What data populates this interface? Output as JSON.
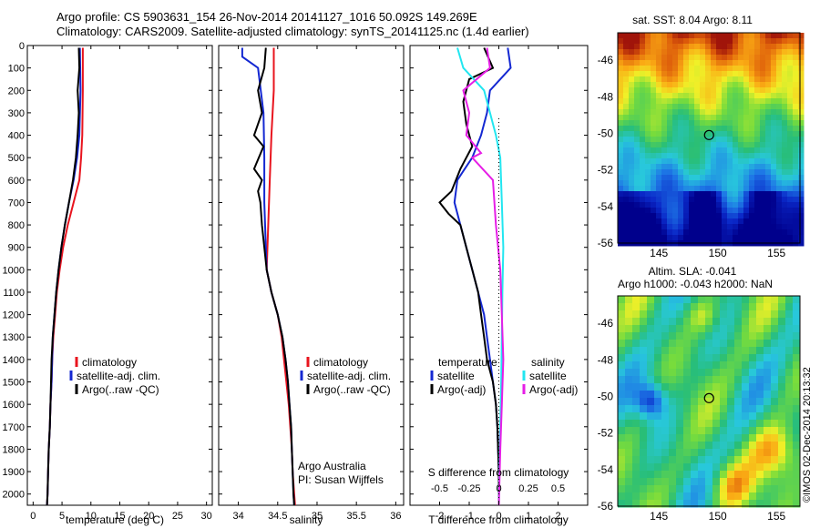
{
  "header": {
    "line1": "Argo profile: CS 5903631_154 26-Nov-2014 20141127_1016 50.092S 149.269E",
    "line2": "Climatology: CARS2009. Satellite-adjusted climatology: synTS_20141125.nc (1.4d earlier)"
  },
  "colors": {
    "climatology": "#e8141e",
    "satellite": "#1428d2",
    "argo": "#000000",
    "satellite_salinity": "#22e6f0",
    "argo_salinity": "#e61ee6"
  },
  "chart_data": [
    {
      "type": "line",
      "id": "temperature",
      "xlabel": "temperature (deg C)",
      "ylabel": "",
      "xlim": [
        -1,
        31
      ],
      "ylim": [
        2050,
        0
      ],
      "x_ticks": [
        0,
        5,
        10,
        15,
        20,
        25,
        30
      ],
      "y_ticks": [
        0,
        100,
        200,
        300,
        400,
        500,
        600,
        700,
        800,
        900,
        1000,
        1100,
        1200,
        1300,
        1400,
        1500,
        1600,
        1700,
        1800,
        1900,
        2000
      ],
      "legend": [
        "climatology",
        "satellite-adj. clim.",
        "Argo(..raw -QC)"
      ],
      "legend_position": "center",
      "series": [
        {
          "name": "climatology",
          "color": "red",
          "points": [
            [
              8.6,
              10
            ],
            [
              8.6,
              200
            ],
            [
              8.5,
              400
            ],
            [
              8.3,
              500
            ],
            [
              8.0,
              600
            ],
            [
              7.0,
              700
            ],
            [
              6.0,
              800
            ],
            [
              5.2,
              900
            ],
            [
              4.6,
              1000
            ],
            [
              4.1,
              1100
            ],
            [
              3.8,
              1200
            ],
            [
              3.5,
              1300
            ],
            [
              3.3,
              1400
            ],
            [
              3.2,
              1500
            ],
            [
              3.0,
              1600
            ],
            [
              2.9,
              1700
            ],
            [
              2.7,
              1800
            ],
            [
              2.6,
              1900
            ],
            [
              2.5,
              2000
            ],
            [
              2.4,
              2050
            ]
          ]
        },
        {
          "name": "satellite-adj. clim.",
          "color": "blue",
          "points": [
            [
              8.1,
              10
            ],
            [
              8.2,
              200
            ],
            [
              8.0,
              400
            ],
            [
              7.6,
              500
            ],
            [
              7.0,
              600
            ],
            [
              6.2,
              700
            ],
            [
              5.5,
              800
            ],
            [
              4.9,
              900
            ],
            [
              4.4,
              1000
            ],
            [
              4.0,
              1100
            ],
            [
              3.7,
              1200
            ],
            [
              3.4,
              1300
            ],
            [
              3.3,
              1400
            ],
            [
              3.2,
              1500
            ],
            [
              3.0,
              1600
            ],
            [
              2.9,
              1700
            ],
            [
              2.7,
              1800
            ],
            [
              2.6,
              1900
            ],
            [
              2.5,
              2000
            ],
            [
              2.4,
              2050
            ]
          ]
        },
        {
          "name": "Argo(..raw -QC)",
          "color": "black",
          "points": [
            [
              7.9,
              10
            ],
            [
              8.0,
              100
            ],
            [
              7.7,
              200
            ],
            [
              7.9,
              300
            ],
            [
              7.7,
              400
            ],
            [
              7.4,
              500
            ],
            [
              6.9,
              600
            ],
            [
              6.2,
              700
            ],
            [
              5.5,
              800
            ],
            [
              4.9,
              900
            ],
            [
              4.4,
              1000
            ],
            [
              4.0,
              1100
            ],
            [
              3.7,
              1200
            ],
            [
              3.4,
              1300
            ],
            [
              3.2,
              1400
            ],
            [
              3.1,
              1500
            ],
            [
              3.0,
              1600
            ],
            [
              2.9,
              1700
            ],
            [
              2.7,
              1800
            ],
            [
              2.6,
              1900
            ],
            [
              2.5,
              2000
            ],
            [
              2.4,
              2050
            ]
          ]
        }
      ]
    },
    {
      "type": "line",
      "id": "salinity",
      "xlabel": "salinity",
      "ylabel": "",
      "xlim": [
        33.75,
        36.1
      ],
      "ylim": [
        2050,
        0
      ],
      "x_ticks": [
        34,
        34.5,
        35,
        35.5,
        36
      ],
      "legend": [
        "climatology",
        "satellite-adj. clim.",
        "Argo(..raw -QC)"
      ],
      "legend_position": "center-right",
      "annotation": [
        "Argo Australia",
        "PI: Susan Wijffels"
      ],
      "series": [
        {
          "name": "climatology",
          "color": "red",
          "points": [
            [
              34.45,
              10
            ],
            [
              34.45,
              200
            ],
            [
              34.42,
              400
            ],
            [
              34.4,
              600
            ],
            [
              34.38,
              800
            ],
            [
              34.36,
              1000
            ],
            [
              34.42,
              1100
            ],
            [
              34.5,
              1200
            ],
            [
              34.55,
              1300
            ],
            [
              34.58,
              1400
            ],
            [
              34.61,
              1500
            ],
            [
              34.64,
              1600
            ],
            [
              34.66,
              1700
            ],
            [
              34.68,
              1800
            ],
            [
              34.69,
              1900
            ],
            [
              34.71,
              2000
            ],
            [
              34.72,
              2050
            ]
          ]
        },
        {
          "name": "satellite-adj. clim.",
          "color": "blue",
          "points": [
            [
              34.05,
              10
            ],
            [
              34.05,
              50
            ],
            [
              34.25,
              100
            ],
            [
              34.32,
              300
            ],
            [
              34.33,
              500
            ],
            [
              34.33,
              700
            ],
            [
              34.35,
              900
            ],
            [
              34.36,
              1000
            ],
            [
              34.42,
              1100
            ],
            [
              34.5,
              1200
            ],
            [
              34.56,
              1300
            ],
            [
              34.6,
              1400
            ],
            [
              34.63,
              1500
            ],
            [
              34.65,
              1600
            ],
            [
              34.67,
              1700
            ],
            [
              34.68,
              1800
            ],
            [
              34.69,
              1900
            ],
            [
              34.7,
              2000
            ],
            [
              34.71,
              2050
            ]
          ]
        },
        {
          "name": "Argo(..raw -QC)",
          "color": "black",
          "points": [
            [
              34.35,
              10
            ],
            [
              34.33,
              100
            ],
            [
              34.25,
              200
            ],
            [
              34.3,
              300
            ],
            [
              34.2,
              400
            ],
            [
              34.32,
              450
            ],
            [
              34.2,
              550
            ],
            [
              34.3,
              600
            ],
            [
              34.25,
              650
            ],
            [
              34.28,
              700
            ],
            [
              34.3,
              800
            ],
            [
              34.33,
              900
            ],
            [
              34.36,
              1000
            ],
            [
              34.42,
              1100
            ],
            [
              34.5,
              1200
            ],
            [
              34.56,
              1300
            ],
            [
              34.6,
              1400
            ],
            [
              34.63,
              1500
            ],
            [
              34.65,
              1600
            ],
            [
              34.67,
              1700
            ],
            [
              34.68,
              1800
            ],
            [
              34.69,
              1900
            ],
            [
              34.7,
              2000
            ],
            [
              34.71,
              2050
            ]
          ]
        }
      ]
    },
    {
      "type": "line",
      "id": "difference",
      "xlabel": "T difference from climatology",
      "top_label": "S difference from climatology",
      "xlim": [
        -3,
        3
      ],
      "ylim": [
        2050,
        0
      ],
      "x_ticks": [
        -2,
        -1,
        0,
        1,
        2
      ],
      "x_tick_labels": [
        "-2",
        "-1",
        "0",
        "1",
        "2"
      ],
      "s_ticks": [
        -0.5,
        -0.25,
        0,
        0.25,
        0.5
      ],
      "s_tick_labels": [
        "-0.5",
        "-0.25",
        "0",
        "0.25",
        "0.5"
      ],
      "legend": {
        "temperature_title": "temperature",
        "salinity_title": "salinity",
        "temperature": [
          "satellite",
          "Argo(-adj)"
        ],
        "salinity": [
          "satellite",
          "Argo(-adj)"
        ]
      },
      "legend_position": "center",
      "series": [
        {
          "name": "T satellite",
          "color": "blue",
          "points": [
            [
              0.3,
              10
            ],
            [
              0.4,
              100
            ],
            [
              -0.3,
              200
            ],
            [
              -0.4,
              300
            ],
            [
              -0.6,
              400
            ],
            [
              -0.9,
              500
            ],
            [
              -1.4,
              600
            ],
            [
              -1.5,
              700
            ],
            [
              -1.3,
              800
            ],
            [
              -1.1,
              900
            ],
            [
              -0.9,
              1000
            ],
            [
              -0.7,
              1100
            ],
            [
              -0.5,
              1200
            ],
            [
              -0.4,
              1300
            ],
            [
              -0.3,
              1400
            ],
            [
              -0.2,
              1500
            ],
            [
              -0.1,
              1600
            ],
            [
              -0.05,
              1700
            ],
            [
              0,
              1900
            ],
            [
              0,
              2050
            ]
          ]
        },
        {
          "name": "T Argo(-adj)",
          "color": "black",
          "points": [
            [
              -0.5,
              10
            ],
            [
              -0.2,
              100
            ],
            [
              -1.0,
              150
            ],
            [
              -1.2,
              250
            ],
            [
              -1.1,
              350
            ],
            [
              -0.9,
              450
            ],
            [
              -1.3,
              550
            ],
            [
              -1.6,
              650
            ],
            [
              -2.0,
              700
            ],
            [
              -1.7,
              750
            ],
            [
              -1.3,
              800
            ],
            [
              -1.1,
              900
            ],
            [
              -0.9,
              1000
            ],
            [
              -0.7,
              1100
            ],
            [
              -0.6,
              1200
            ],
            [
              -0.5,
              1300
            ],
            [
              -0.4,
              1400
            ],
            [
              -0.2,
              1500
            ],
            [
              -0.1,
              1600
            ],
            [
              -0.05,
              1700
            ],
            [
              0,
              1900
            ],
            [
              0,
              2050
            ]
          ]
        },
        {
          "name": "S satellite",
          "color": "cyan",
          "points": [
            [
              -1.4,
              10
            ],
            [
              -1.2,
              100
            ],
            [
              -0.5,
              200
            ],
            [
              -0.1,
              400
            ],
            [
              0.05,
              500
            ],
            [
              0.1,
              700
            ],
            [
              0.15,
              900
            ],
            [
              0.12,
              1100
            ],
            [
              0.1,
              1300
            ],
            [
              0.08,
              1500
            ],
            [
              0.05,
              1700
            ],
            [
              0.02,
              1900
            ],
            [
              0,
              2050
            ]
          ]
        },
        {
          "name": "S Argo(-adj)",
          "color": "magenta",
          "points": [
            [
              -0.4,
              10
            ],
            [
              -0.3,
              100
            ],
            [
              -1.2,
              200
            ],
            [
              -1.0,
              300
            ],
            [
              -1.1,
              400
            ],
            [
              -0.6,
              480
            ],
            [
              -0.9,
              500
            ],
            [
              -0.2,
              600
            ],
            [
              -0.1,
              800
            ],
            [
              0.05,
              1000
            ],
            [
              0.1,
              1200
            ],
            [
              0.15,
              1400
            ],
            [
              0.1,
              1600
            ],
            [
              0.05,
              1800
            ],
            [
              0,
              2050
            ]
          ]
        }
      ]
    },
    {
      "type": "heatmap",
      "id": "sst_map",
      "title": "sat. SST: 8.04  Argo: 8.11",
      "x_ticks": [
        145,
        150,
        155
      ],
      "y_ticks": [
        -46,
        -48,
        -50,
        -52,
        -54,
        -56
      ],
      "xlim": [
        141.5,
        157
      ],
      "ylim": [
        -56,
        -44.5
      ],
      "marker": {
        "lon": 149.269,
        "lat": -50.092
      }
    },
    {
      "type": "heatmap",
      "id": "sla_map",
      "title_lines": [
        "Altim. SLA: -0.041",
        "Argo h1000: -0.043 h2000: NaN"
      ],
      "x_ticks": [
        145,
        150,
        155
      ],
      "y_ticks": [
        -46,
        -48,
        -50,
        -52,
        -54,
        -56
      ],
      "xlim": [
        141.5,
        157
      ],
      "ylim": [
        -56,
        -44.5
      ],
      "marker": {
        "lon": 149.269,
        "lat": -50.092
      }
    }
  ],
  "footer": {
    "imos_credit": "©IMOS 02-Dec-2014 20:13:32"
  }
}
